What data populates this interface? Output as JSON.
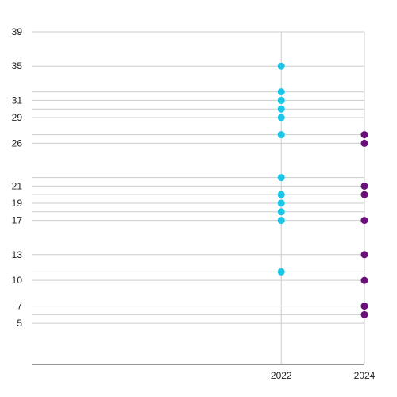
{
  "chart_data": {
    "type": "scatter",
    "title": "",
    "xlabel": "",
    "ylabel": "",
    "x_ticks": [
      2022,
      2024
    ],
    "x_tick_labels": [
      "2022",
      "2024"
    ],
    "xlim": [
      2016,
      2024
    ],
    "y_ticks": [
      39,
      35,
      31,
      29,
      26,
      21,
      19,
      17,
      13,
      10,
      7,
      5
    ],
    "y_tick_labels": [
      "39",
      "35",
      "31",
      "29",
      "26",
      "21",
      "19",
      "17",
      "13",
      "10",
      "7",
      "5"
    ],
    "ylim": [
      0.2,
      39
    ],
    "grid": true,
    "legend": "none",
    "series": [
      {
        "color": "#1bc6e6",
        "points": [
          {
            "x": 2022,
            "y": 35
          },
          {
            "x": 2022,
            "y": 32
          },
          {
            "x": 2022,
            "y": 31
          },
          {
            "x": 2022,
            "y": 30
          },
          {
            "x": 2022,
            "y": 29
          },
          {
            "x": 2022,
            "y": 27
          },
          {
            "x": 2022,
            "y": 22
          },
          {
            "x": 2022,
            "y": 20
          },
          {
            "x": 2022,
            "y": 19
          },
          {
            "x": 2022,
            "y": 18
          },
          {
            "x": 2022,
            "y": 17
          },
          {
            "x": 2022,
            "y": 11
          }
        ]
      },
      {
        "color": "#6b0f7a",
        "points": [
          {
            "x": 2024,
            "y": 27
          },
          {
            "x": 2024,
            "y": 26
          },
          {
            "x": 2024,
            "y": 21
          },
          {
            "x": 2024,
            "y": 20
          },
          {
            "x": 2024,
            "y": 17
          },
          {
            "x": 2024,
            "y": 13
          },
          {
            "x": 2024,
            "y": 10
          },
          {
            "x": 2024,
            "y": 7
          },
          {
            "x": 2024,
            "y": 6
          }
        ]
      }
    ]
  }
}
